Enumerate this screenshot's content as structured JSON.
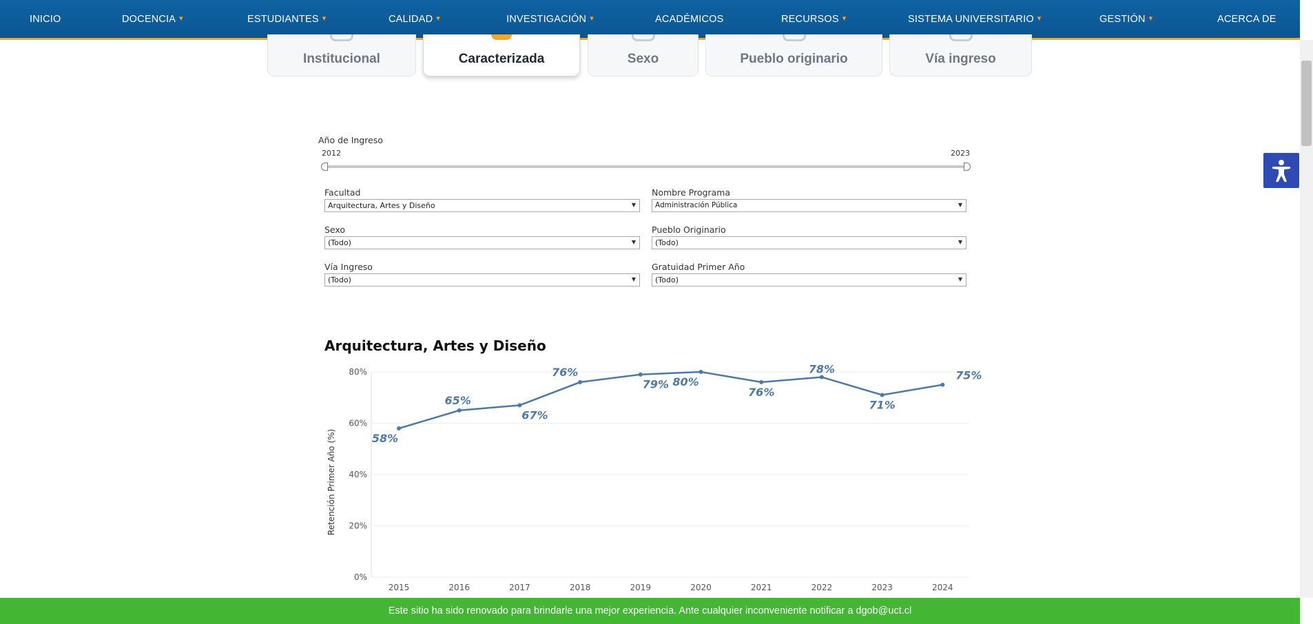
{
  "nav": {
    "items": [
      {
        "label": "INICIO",
        "dropdown": false
      },
      {
        "label": "DOCENCIA",
        "dropdown": true
      },
      {
        "label": "ESTUDIANTES",
        "dropdown": true
      },
      {
        "label": "CALIDAD",
        "dropdown": true
      },
      {
        "label": "INVESTIGACIÓN",
        "dropdown": true
      },
      {
        "label": "ACADÉMICOS",
        "dropdown": false
      },
      {
        "label": "RECURSOS",
        "dropdown": true
      },
      {
        "label": "SISTEMA UNIVERSITARIO",
        "dropdown": true
      },
      {
        "label": "GESTIÓN",
        "dropdown": true
      },
      {
        "label": "ACERCA DE",
        "dropdown": false
      }
    ],
    "chevron": "▾"
  },
  "tabs": [
    {
      "label": "Institucional",
      "active": false,
      "icon": "institution-icon"
    },
    {
      "label": "Caracterizada",
      "active": true,
      "icon": "characterized-icon"
    },
    {
      "label": "Sexo",
      "active": false,
      "icon": "gender-icon"
    },
    {
      "label": "Pueblo originario",
      "active": false,
      "icon": "people-icon"
    },
    {
      "label": "Vía ingreso",
      "active": false,
      "icon": "entry-icon"
    }
  ],
  "filters": {
    "year_label": "Año de Ingreso",
    "year_min": "2012",
    "year_max": "2023",
    "facultad": {
      "label": "Facultad",
      "value": "Arquitectura, Artes y Diseño"
    },
    "programa": {
      "label": "Nombre Programa",
      "value": "Administración Pública"
    },
    "sexo": {
      "label": "Sexo",
      "value": "(Todo)"
    },
    "pueblo": {
      "label": "Pueblo Originario",
      "value": "(Todo)"
    },
    "via": {
      "label": "Vía Ingreso",
      "value": "(Todo)"
    },
    "gratuidad": {
      "label": "Gratuidad Primer Año",
      "value": "(Todo)"
    }
  },
  "chart_data": {
    "type": "line",
    "title": "Arquitectura, Artes y Diseño",
    "xlabel": "",
    "ylabel": "Retención Primer Año (%)",
    "x": [
      2015,
      2016,
      2017,
      2018,
      2019,
      2020,
      2021,
      2022,
      2023,
      2024
    ],
    "values": [
      58,
      65,
      67,
      76,
      79,
      80,
      76,
      78,
      71,
      75
    ],
    "data_labels": [
      "58%",
      "65%",
      "67%",
      "76%",
      "79%",
      "80%",
      "76%",
      "78%",
      "71%",
      "75%"
    ],
    "yticks": [
      "0%",
      "20%",
      "40%",
      "60%",
      "80%"
    ],
    "ylim": [
      0,
      80
    ],
    "grid": true,
    "line_color": "#4e79a7"
  },
  "banner": {
    "text": "Este sitio ha sido renovado para brindarle una mejor experiencia. Ante cualquier inconveniente notificar a dgob@uct.cl"
  },
  "colors": {
    "nav_bg": "#0c5592",
    "accent": "#f5a623",
    "banner_bg": "#43b734",
    "a11y_bg": "#2f4bb3"
  }
}
